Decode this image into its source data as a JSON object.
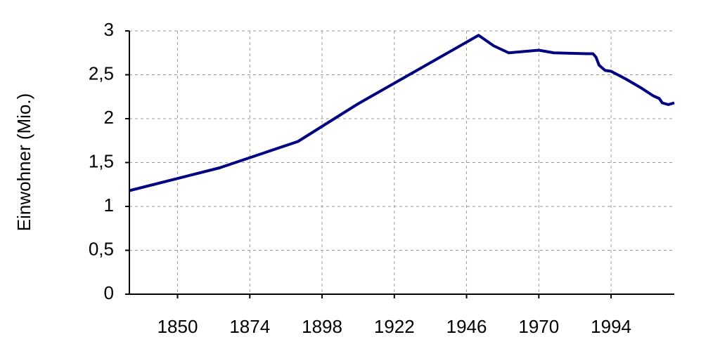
{
  "chart_data": {
    "type": "line",
    "y_label": "Einwohner (Mio.)",
    "x": [
      1834,
      1864,
      1890,
      1910,
      1950,
      1955,
      1960,
      1970,
      1975,
      1986,
      1988,
      1989,
      1990,
      1992,
      1994,
      1999,
      2004,
      2008,
      2010,
      2011,
      2013,
      2015
    ],
    "series": [
      {
        "name": "Einwohner",
        "color": "#000080",
        "values": [
          1.18,
          1.44,
          1.74,
          2.17,
          2.95,
          2.83,
          2.75,
          2.78,
          2.75,
          2.74,
          2.74,
          2.7,
          2.61,
          2.55,
          2.54,
          2.45,
          2.35,
          2.26,
          2.23,
          2.18,
          2.16,
          2.18
        ]
      }
    ],
    "xlim": [
      1834,
      2015
    ],
    "xticks": [
      1850,
      1874,
      1898,
      1922,
      1946,
      1970,
      1994
    ],
    "ylim": [
      0,
      3
    ],
    "yticks": [
      0,
      {
        "value": 0.5,
        "label": "0,5"
      },
      1,
      {
        "value": 1.5,
        "label": "1,5"
      },
      2,
      {
        "value": 2.5,
        "label": "2,5"
      },
      3
    ],
    "grid": true
  }
}
